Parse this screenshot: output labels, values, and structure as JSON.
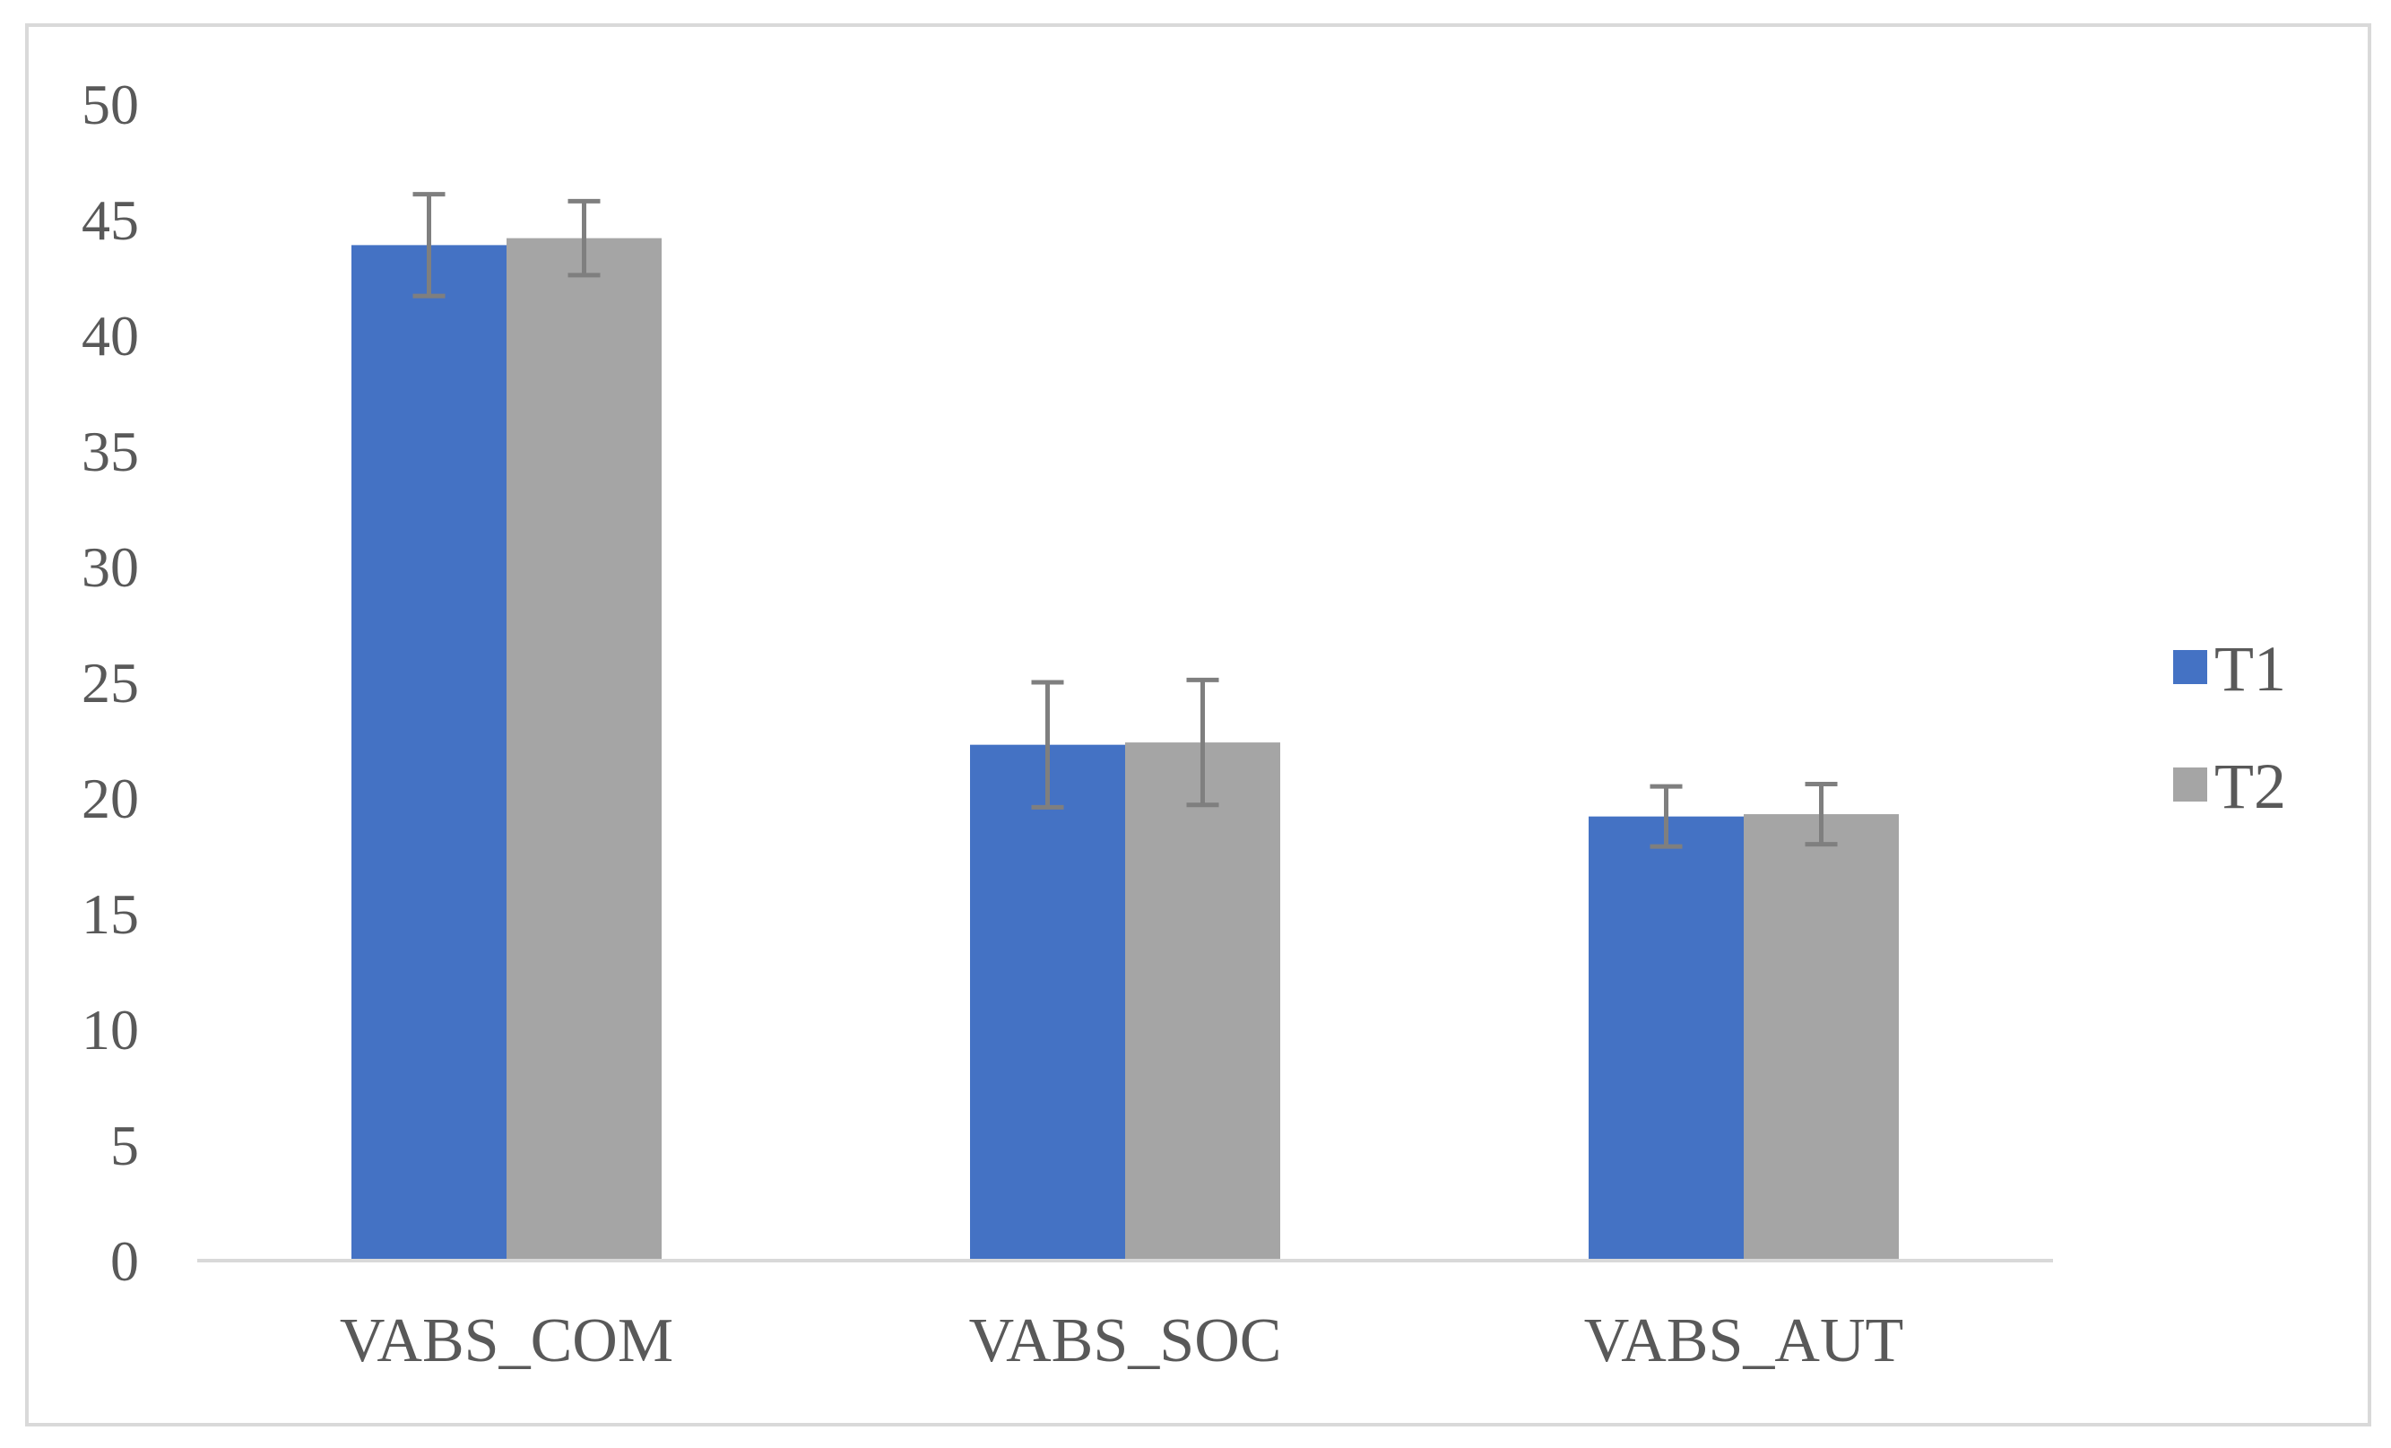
{
  "chart_data": {
    "type": "bar",
    "categories": [
      "VABS_COM",
      "VABS_SOC",
      "VABS_AUT"
    ],
    "series": [
      {
        "name": "T1",
        "values": [
          43.9,
          22.3,
          19.2
        ],
        "error": [
          2.2,
          2.7,
          1.3
        ],
        "color": "#4472c4"
      },
      {
        "name": "T2",
        "values": [
          44.2,
          22.4,
          19.3
        ],
        "error": [
          1.6,
          2.7,
          1.3
        ],
        "color": "#a5a5a5"
      }
    ],
    "title": "",
    "xlabel": "",
    "ylabel": "",
    "ylim": [
      0,
      50
    ],
    "yticks": [
      "0",
      "5",
      "10",
      "15",
      "20",
      "25",
      "30",
      "35",
      "40",
      "45",
      "50"
    ],
    "grid": false,
    "legend_position": "right",
    "error_bar_color": "#7f7f7f",
    "axis_color": "#d9d9d9"
  }
}
